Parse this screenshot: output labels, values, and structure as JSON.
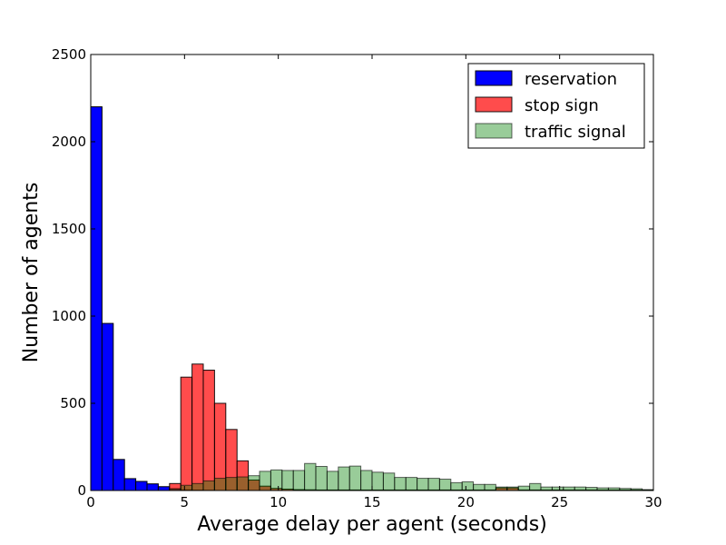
{
  "chart_data": {
    "type": "histogram",
    "title": "",
    "xlabel": "Average delay per agent (seconds)",
    "ylabel": "Number of agents",
    "xlim": [
      0,
      30
    ],
    "ylim": [
      0,
      2500
    ],
    "xticks": [
      0,
      5,
      10,
      15,
      20,
      25,
      30
    ],
    "yticks": [
      0,
      500,
      1000,
      1500,
      2000,
      2500
    ],
    "grid": false,
    "legend_position": "top-right",
    "bin_width": 0.6,
    "series": [
      {
        "name": "reservation",
        "color": "#0000ff",
        "alpha": 1.0,
        "bin_start": 0,
        "values": [
          2200,
          958,
          178,
          68,
          52,
          38,
          22,
          10,
          4,
          2,
          1
        ]
      },
      {
        "name": "stop sign",
        "color": "#ff0000",
        "alpha": 0.7,
        "bin_start": 4.2,
        "values": [
          40,
          650,
          725,
          690,
          500,
          350,
          170,
          60,
          25,
          12,
          8,
          5,
          4,
          3,
          3,
          3,
          3,
          3,
          3,
          3,
          3,
          3,
          3,
          3,
          3,
          3,
          3,
          3,
          3,
          15,
          15,
          3,
          3,
          3,
          3,
          3,
          3,
          3,
          3,
          3,
          3,
          3,
          3
        ]
      },
      {
        "name": "traffic signal",
        "color": "#008000",
        "alpha": 0.4,
        "bin_start": 4.2,
        "values": [
          10,
          30,
          40,
          55,
          70,
          75,
          78,
          85,
          110,
          118,
          115,
          115,
          155,
          138,
          110,
          135,
          140,
          115,
          105,
          100,
          75,
          75,
          70,
          70,
          65,
          45,
          50,
          35,
          35,
          20,
          20,
          25,
          40,
          20,
          20,
          20,
          20,
          18,
          15,
          15,
          12,
          10,
          5
        ]
      }
    ]
  }
}
